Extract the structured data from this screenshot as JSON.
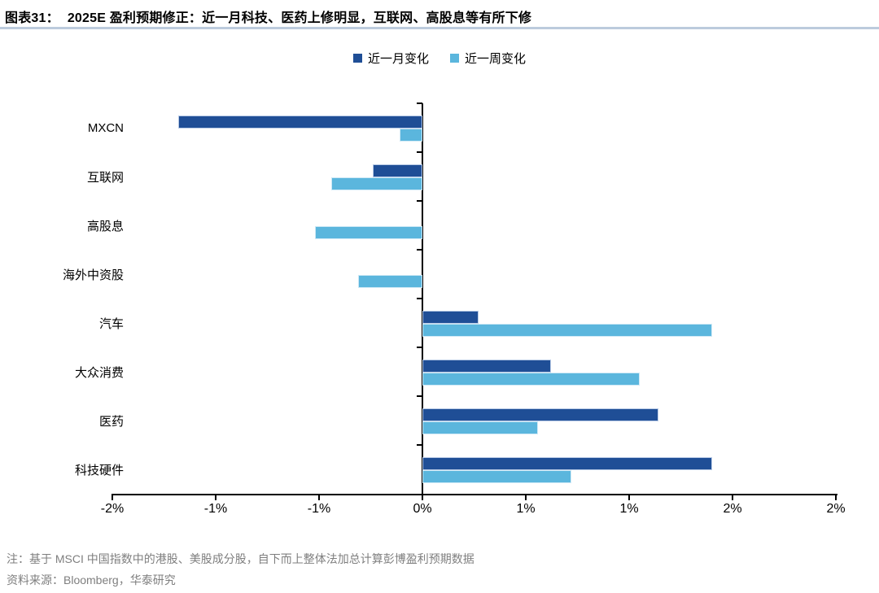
{
  "figure": {
    "label": "图表31：",
    "title": "2025E 盈利预期修正：近一月科技、医药上修明显，互联网、高股息等有所下修"
  },
  "legend": [
    {
      "name": "近一月变化",
      "color": "#1F4E96",
      "icon": "square-swatch"
    },
    {
      "name": "近一周变化",
      "color": "#5BB6DD",
      "icon": "square-swatch"
    }
  ],
  "chart_data": {
    "type": "bar",
    "orientation": "horizontal",
    "title": "2025E 盈利预期修正",
    "categories": [
      "MXCN",
      "互联网",
      "高股息",
      "海外中资股",
      "汽车",
      "大众消费",
      "医药",
      "科技硬件"
    ],
    "series": [
      {
        "name": "近一月变化",
        "color": "#1F4E96",
        "border": "#b9cbe6",
        "values": [
          -1.18,
          -0.24,
          0,
          0,
          0.27,
          0.62,
          1.14,
          1.4
        ]
      },
      {
        "name": "近一周变化",
        "color": "#5BB6DD",
        "border": "#cfe9f6",
        "values": [
          -0.11,
          -0.44,
          -0.52,
          -0.31,
          1.4,
          1.05,
          0.56,
          0.72
        ]
      }
    ],
    "x_unit": "%",
    "xlim": [
      -1.5,
      2.0
    ],
    "x_ticks": [
      {
        "value": -1.5,
        "label": "-2%"
      },
      {
        "value": -1.0,
        "label": "-1%"
      },
      {
        "value": -0.5,
        "label": "-1%"
      },
      {
        "value": 0.0,
        "label": "0%"
      },
      {
        "value": 0.5,
        "label": "1%"
      },
      {
        "value": 1.0,
        "label": "1%"
      },
      {
        "value": 1.5,
        "label": "2%"
      },
      {
        "value": 2.0,
        "label": "2%"
      }
    ],
    "legend_position": "top",
    "grid": false
  },
  "footnotes": {
    "note": "注：基于 MSCI 中国指数中的港股、美股成分股，自下而上整体法加总计算彭博盈利预期数据",
    "source": "资料来源：Bloomberg，华泰研究"
  }
}
